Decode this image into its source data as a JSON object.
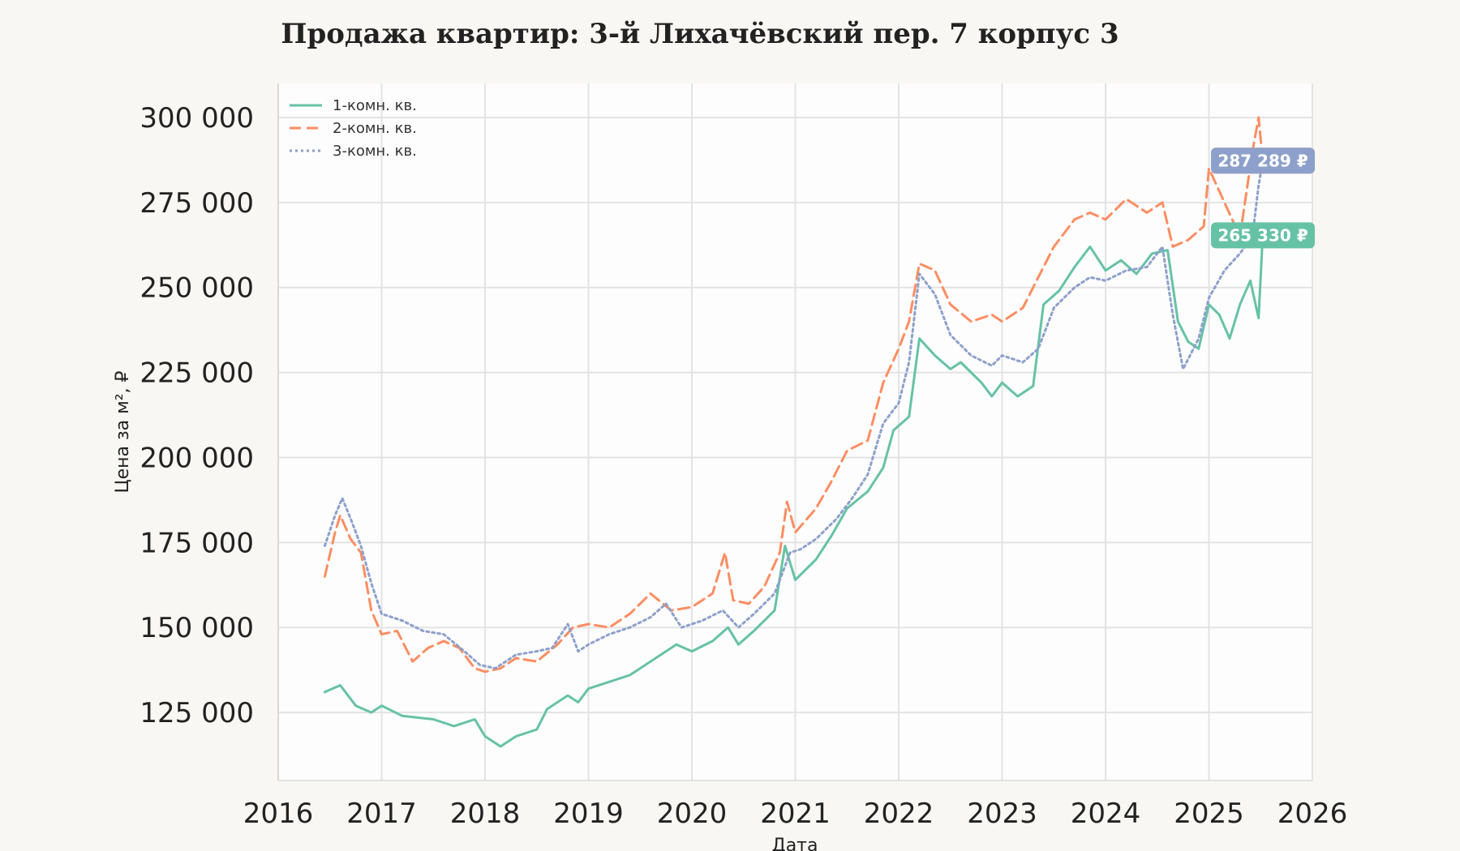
{
  "chart_data": {
    "type": "line",
    "title": "Продажа квартир: 3-й Лихачёвский пер. 7 корпус 3",
    "xlabel": "Дата",
    "ylabel": "Цена за м², ₽",
    "xlim": [
      2016,
      2026
    ],
    "ylim": [
      105000,
      310000
    ],
    "x_ticks": [
      2016,
      2017,
      2018,
      2019,
      2020,
      2021,
      2022,
      2023,
      2024,
      2025,
      2026
    ],
    "x_tick_labels": [
      "2016",
      "2017",
      "2018",
      "2019",
      "2020",
      "2021",
      "2022",
      "2023",
      "2024",
      "2025",
      "2026"
    ],
    "y_ticks": [
      125000,
      150000,
      175000,
      200000,
      225000,
      250000,
      275000,
      300000
    ],
    "y_tick_labels": [
      "125 000",
      "150 000",
      "175 000",
      "200 000",
      "225 000",
      "250 000",
      "275 000",
      "300 000"
    ],
    "grid": true,
    "legend_position": "top-left",
    "series": [
      {
        "name": "1-комн. кв.",
        "color": "#66c2a5",
        "style": "solid",
        "end_label": "265 330 ₽",
        "points": [
          [
            2016.45,
            131000
          ],
          [
            2016.6,
            133000
          ],
          [
            2016.75,
            127000
          ],
          [
            2016.9,
            125000
          ],
          [
            2017.0,
            127000
          ],
          [
            2017.2,
            124000
          ],
          [
            2017.5,
            123000
          ],
          [
            2017.7,
            121000
          ],
          [
            2017.9,
            123000
          ],
          [
            2018.0,
            118000
          ],
          [
            2018.15,
            115000
          ],
          [
            2018.3,
            118000
          ],
          [
            2018.5,
            120000
          ],
          [
            2018.6,
            126000
          ],
          [
            2018.8,
            130000
          ],
          [
            2018.9,
            128000
          ],
          [
            2019.0,
            132000
          ],
          [
            2019.2,
            134000
          ],
          [
            2019.4,
            136000
          ],
          [
            2019.5,
            138000
          ],
          [
            2019.7,
            142000
          ],
          [
            2019.85,
            145000
          ],
          [
            2020.0,
            143000
          ],
          [
            2020.2,
            146000
          ],
          [
            2020.35,
            150000
          ],
          [
            2020.45,
            145000
          ],
          [
            2020.6,
            149000
          ],
          [
            2020.8,
            155000
          ],
          [
            2020.9,
            174000
          ],
          [
            2021.0,
            164000
          ],
          [
            2021.2,
            170000
          ],
          [
            2021.35,
            177000
          ],
          [
            2021.5,
            185000
          ],
          [
            2021.7,
            190000
          ],
          [
            2021.85,
            197000
          ],
          [
            2021.95,
            208000
          ],
          [
            2022.1,
            212000
          ],
          [
            2022.2,
            235000
          ],
          [
            2022.35,
            230000
          ],
          [
            2022.5,
            226000
          ],
          [
            2022.6,
            228000
          ],
          [
            2022.8,
            222000
          ],
          [
            2022.9,
            218000
          ],
          [
            2023.0,
            222000
          ],
          [
            2023.15,
            218000
          ],
          [
            2023.3,
            221000
          ],
          [
            2023.4,
            245000
          ],
          [
            2023.55,
            249000
          ],
          [
            2023.7,
            256000
          ],
          [
            2023.85,
            262000
          ],
          [
            2024.0,
            255000
          ],
          [
            2024.15,
            258000
          ],
          [
            2024.3,
            254000
          ],
          [
            2024.45,
            260000
          ],
          [
            2024.6,
            261000
          ],
          [
            2024.7,
            240000
          ],
          [
            2024.8,
            234000
          ],
          [
            2024.9,
            232000
          ],
          [
            2025.0,
            245000
          ],
          [
            2025.1,
            242000
          ],
          [
            2025.2,
            235000
          ],
          [
            2025.3,
            245000
          ],
          [
            2025.4,
            252000
          ],
          [
            2025.48,
            241000
          ],
          [
            2025.52,
            265330
          ]
        ]
      },
      {
        "name": "2-комн. кв.",
        "color": "#fc8d62",
        "style": "dashed",
        "end_label": "287 289 ₽",
        "points": [
          [
            2016.45,
            165000
          ],
          [
            2016.55,
            178000
          ],
          [
            2016.6,
            183000
          ],
          [
            2016.7,
            176000
          ],
          [
            2016.8,
            172000
          ],
          [
            2016.9,
            155000
          ],
          [
            2017.0,
            148000
          ],
          [
            2017.15,
            149000
          ],
          [
            2017.3,
            140000
          ],
          [
            2017.45,
            144000
          ],
          [
            2017.6,
            146000
          ],
          [
            2017.75,
            144000
          ],
          [
            2017.9,
            138000
          ],
          [
            2018.0,
            137000
          ],
          [
            2018.15,
            138000
          ],
          [
            2018.3,
            141000
          ],
          [
            2018.5,
            140000
          ],
          [
            2018.7,
            145000
          ],
          [
            2018.85,
            150000
          ],
          [
            2019.0,
            151000
          ],
          [
            2019.2,
            150000
          ],
          [
            2019.4,
            154000
          ],
          [
            2019.6,
            160000
          ],
          [
            2019.8,
            155000
          ],
          [
            2020.0,
            156000
          ],
          [
            2020.2,
            160000
          ],
          [
            2020.32,
            172000
          ],
          [
            2020.4,
            158000
          ],
          [
            2020.55,
            157000
          ],
          [
            2020.7,
            162000
          ],
          [
            2020.85,
            172000
          ],
          [
            2020.92,
            187000
          ],
          [
            2021.0,
            178000
          ],
          [
            2021.2,
            185000
          ],
          [
            2021.35,
            193000
          ],
          [
            2021.5,
            202000
          ],
          [
            2021.7,
            205000
          ],
          [
            2021.85,
            222000
          ],
          [
            2022.0,
            232000
          ],
          [
            2022.1,
            240000
          ],
          [
            2022.2,
            257000
          ],
          [
            2022.35,
            255000
          ],
          [
            2022.5,
            245000
          ],
          [
            2022.7,
            240000
          ],
          [
            2022.9,
            242000
          ],
          [
            2023.0,
            240000
          ],
          [
            2023.2,
            244000
          ],
          [
            2023.35,
            253000
          ],
          [
            2023.5,
            262000
          ],
          [
            2023.7,
            270000
          ],
          [
            2023.85,
            272000
          ],
          [
            2024.0,
            270000
          ],
          [
            2024.2,
            276000
          ],
          [
            2024.4,
            272000
          ],
          [
            2024.55,
            275000
          ],
          [
            2024.65,
            262000
          ],
          [
            2024.8,
            264000
          ],
          [
            2024.95,
            268000
          ],
          [
            2025.0,
            285000
          ],
          [
            2025.15,
            275000
          ],
          [
            2025.3,
            265000
          ],
          [
            2025.42,
            290000
          ],
          [
            2025.48,
            300000
          ],
          [
            2025.52,
            287289
          ]
        ]
      },
      {
        "name": "3-комн. кв.",
        "color": "#8da0cb",
        "style": "dotted",
        "end_label": "287 289 ₽",
        "points": [
          [
            2016.45,
            174000
          ],
          [
            2016.55,
            183000
          ],
          [
            2016.62,
            188000
          ],
          [
            2016.7,
            182000
          ],
          [
            2016.8,
            174000
          ],
          [
            2016.9,
            163000
          ],
          [
            2017.0,
            154000
          ],
          [
            2017.2,
            152000
          ],
          [
            2017.4,
            149000
          ],
          [
            2017.6,
            148000
          ],
          [
            2017.8,
            143000
          ],
          [
            2017.95,
            139000
          ],
          [
            2018.1,
            138000
          ],
          [
            2018.3,
            142000
          ],
          [
            2018.5,
            143000
          ],
          [
            2018.65,
            144000
          ],
          [
            2018.8,
            151000
          ],
          [
            2018.9,
            143000
          ],
          [
            2019.0,
            145000
          ],
          [
            2019.2,
            148000
          ],
          [
            2019.4,
            150000
          ],
          [
            2019.6,
            153000
          ],
          [
            2019.75,
            157000
          ],
          [
            2019.9,
            150000
          ],
          [
            2020.1,
            152000
          ],
          [
            2020.3,
            155000
          ],
          [
            2020.45,
            150000
          ],
          [
            2020.6,
            154000
          ],
          [
            2020.8,
            160000
          ],
          [
            2020.95,
            172000
          ],
          [
            2021.05,
            173000
          ],
          [
            2021.2,
            176000
          ],
          [
            2021.4,
            182000
          ],
          [
            2021.55,
            188000
          ],
          [
            2021.7,
            195000
          ],
          [
            2021.85,
            210000
          ],
          [
            2022.0,
            216000
          ],
          [
            2022.1,
            228000
          ],
          [
            2022.2,
            254000
          ],
          [
            2022.35,
            248000
          ],
          [
            2022.5,
            236000
          ],
          [
            2022.7,
            230000
          ],
          [
            2022.9,
            227000
          ],
          [
            2023.0,
            230000
          ],
          [
            2023.2,
            228000
          ],
          [
            2023.35,
            232000
          ],
          [
            2023.5,
            244000
          ],
          [
            2023.7,
            250000
          ],
          [
            2023.85,
            253000
          ],
          [
            2024.0,
            252000
          ],
          [
            2024.2,
            255000
          ],
          [
            2024.4,
            256000
          ],
          [
            2024.55,
            262000
          ],
          [
            2024.65,
            242000
          ],
          [
            2024.75,
            226000
          ],
          [
            2024.9,
            235000
          ],
          [
            2025.0,
            247000
          ],
          [
            2025.15,
            255000
          ],
          [
            2025.3,
            260000
          ],
          [
            2025.42,
            265000
          ],
          [
            2025.48,
            280000
          ],
          [
            2025.52,
            287289
          ]
        ]
      }
    ]
  }
}
